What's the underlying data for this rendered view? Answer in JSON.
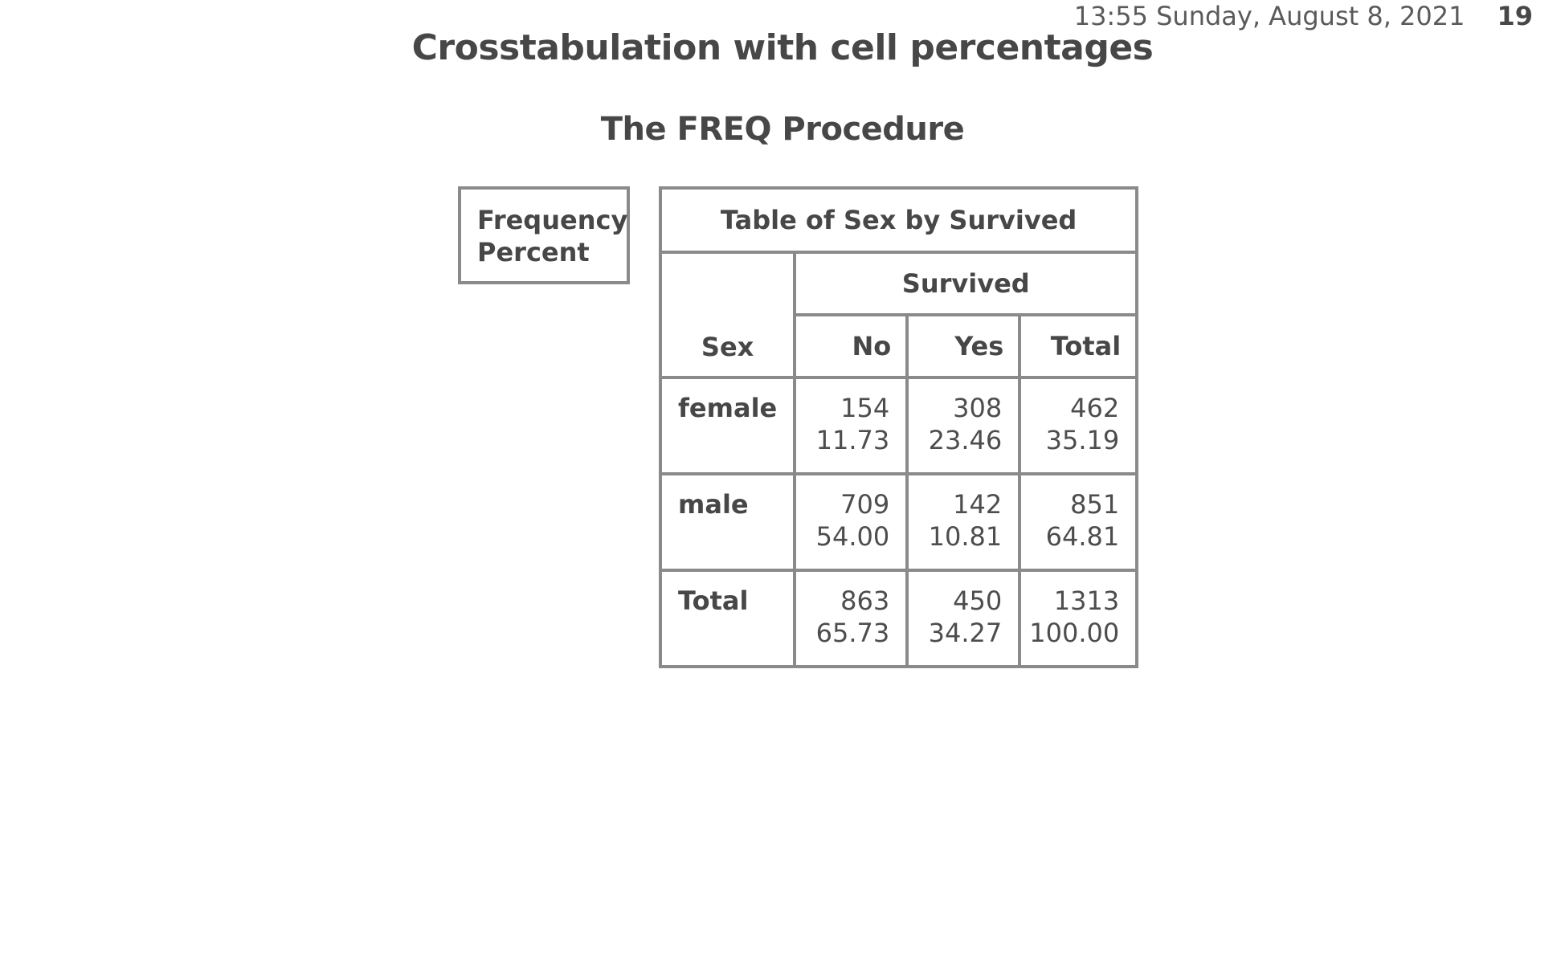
{
  "header": {
    "timestamp": "13:55 Sunday, August 8, 2021",
    "page_number": "19"
  },
  "title": "Crosstabulation with cell percentages",
  "procedure_title": "The FREQ Procedure",
  "legend": {
    "line1": "Frequency",
    "line2": "Percent"
  },
  "table": {
    "title": "Table of Sex by Survived",
    "column_variable": "Survived",
    "row_variable": "Sex",
    "columns": [
      "No",
      "Yes",
      "Total"
    ],
    "rows": [
      {
        "label": "female",
        "frequency": [
          "154",
          "308",
          "462"
        ],
        "percent": [
          "11.73",
          "23.46",
          "35.19"
        ]
      },
      {
        "label": "male",
        "frequency": [
          "709",
          "142",
          "851"
        ],
        "percent": [
          "54.00",
          "10.81",
          "64.81"
        ]
      },
      {
        "label": "Total",
        "frequency": [
          "863",
          "450",
          "1313"
        ],
        "percent": [
          "65.73",
          "34.27",
          "100.00"
        ]
      }
    ]
  }
}
